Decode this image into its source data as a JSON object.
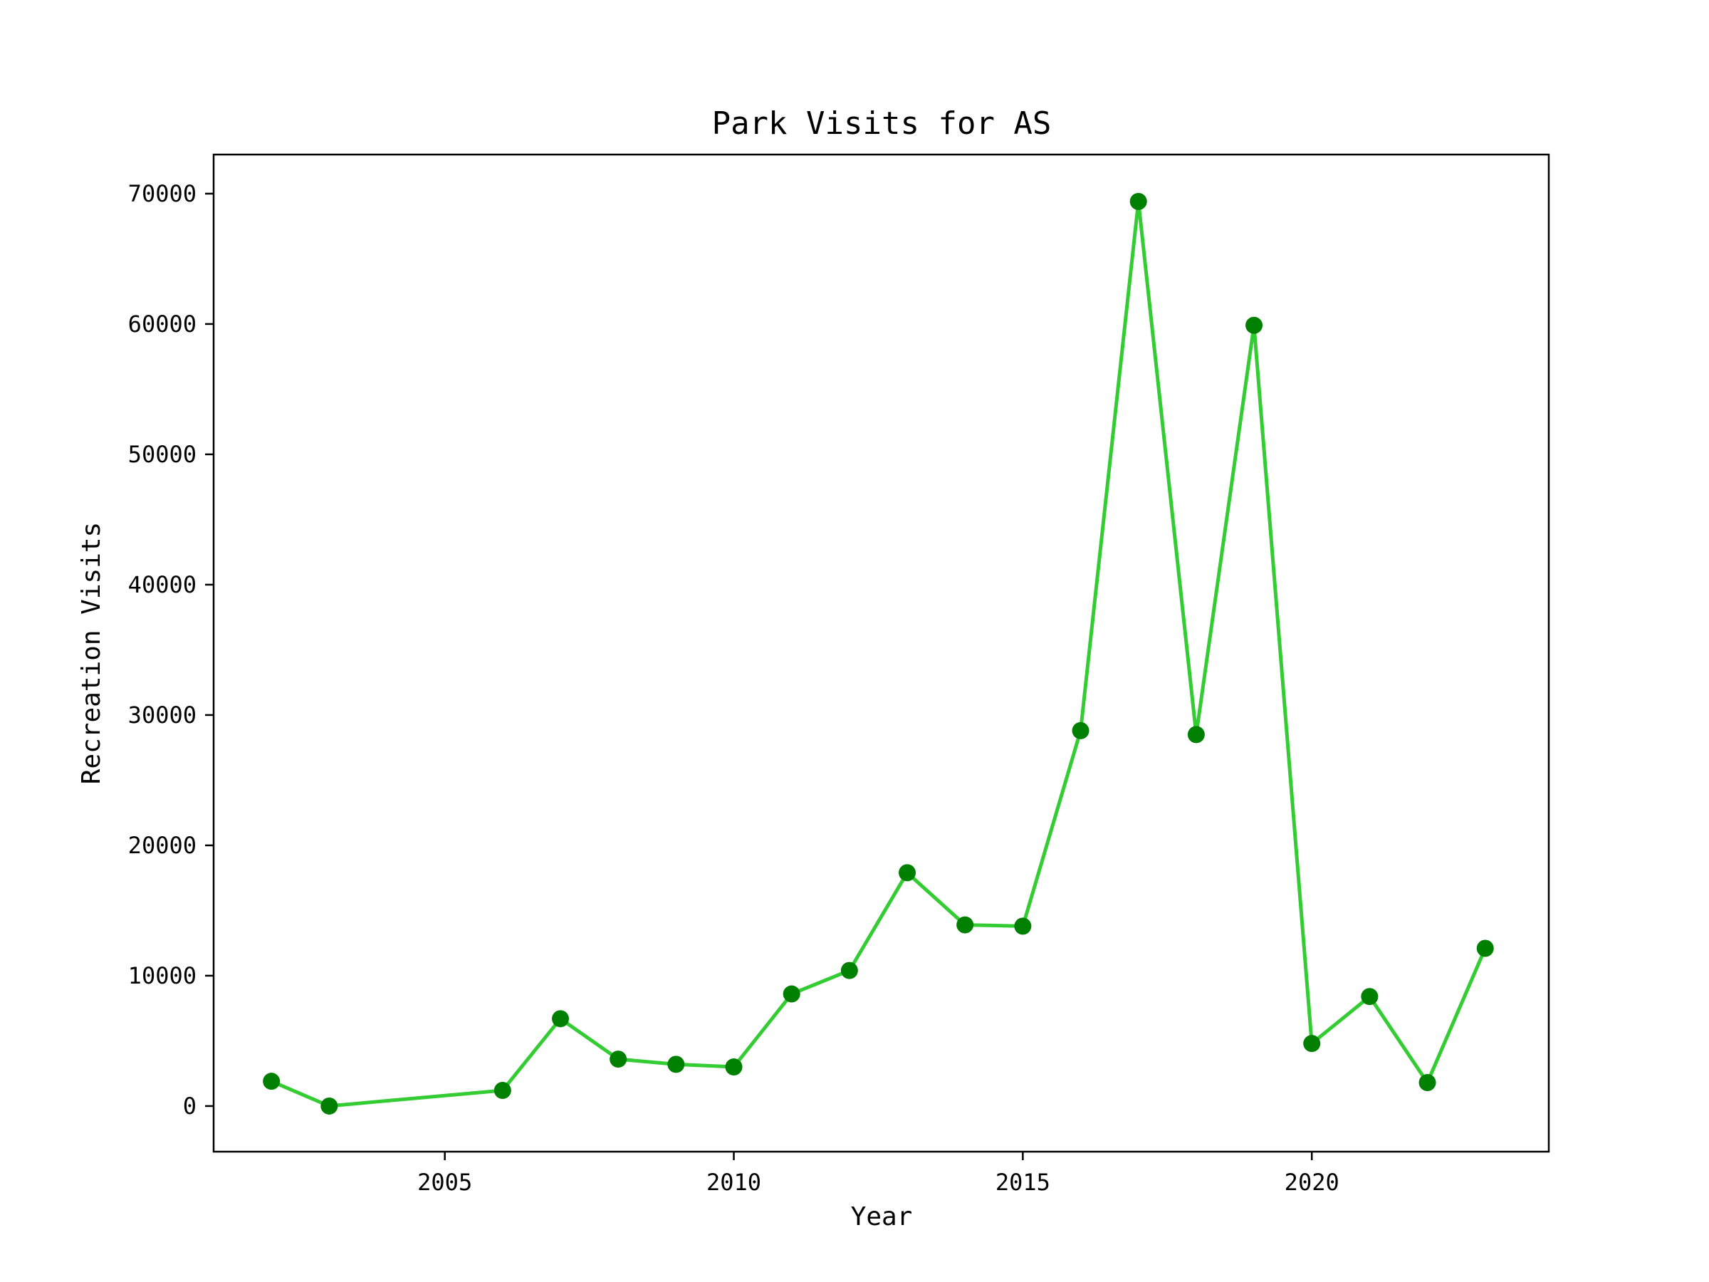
{
  "chart_data": {
    "type": "line",
    "title": "Park Visits for AS",
    "xlabel": "Year",
    "ylabel": "Recreation Visits",
    "x": [
      2002,
      2003,
      2006,
      2007,
      2008,
      2009,
      2010,
      2011,
      2012,
      2013,
      2014,
      2015,
      2016,
      2017,
      2018,
      2019,
      2020,
      2021,
      2022,
      2023
    ],
    "series": [
      {
        "values": [
          1900,
          0,
          1200,
          6700,
          3600,
          3200,
          3000,
          8600,
          10400,
          17900,
          13900,
          13800,
          28800,
          69400,
          28500,
          59900,
          4800,
          8400,
          1800,
          12100
        ]
      }
    ],
    "xlim": [
      2001,
      2024.1
    ],
    "ylim": [
      -3500,
      73000
    ],
    "xticks": [
      2005,
      2010,
      2015,
      2020
    ],
    "yticks": [
      0,
      10000,
      20000,
      30000,
      40000,
      50000,
      60000,
      70000
    ],
    "line_color": "#33cc33",
    "marker_color": "#008000",
    "grid": false,
    "legend": "none"
  }
}
